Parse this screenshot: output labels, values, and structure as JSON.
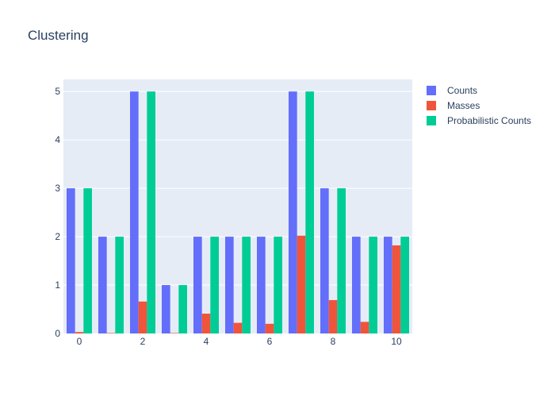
{
  "chart_data": {
    "type": "bar",
    "title": "Clustering",
    "xlabel": "",
    "ylabel": "",
    "x": [
      0,
      1,
      2,
      3,
      4,
      5,
      6,
      7,
      8,
      9,
      10
    ],
    "xticks": [
      0,
      2,
      4,
      6,
      8,
      10
    ],
    "yticks": [
      0,
      1,
      2,
      3,
      4,
      5
    ],
    "xlim": [
      -0.5,
      10.5
    ],
    "ylim": [
      0,
      5.25
    ],
    "grid": true,
    "legend_position": "top-right",
    "series": [
      {
        "name": "Counts",
        "color": "#636efa",
        "values": [
          3,
          2,
          5,
          1,
          2,
          2,
          2,
          5,
          3,
          2,
          2
        ]
      },
      {
        "name": "Masses",
        "color": "#ef553b",
        "values": [
          0.03,
          0.01,
          0.66,
          0.01,
          0.41,
          0.22,
          0.2,
          2.02,
          0.69,
          0.24,
          1.82
        ]
      },
      {
        "name": "Probabilistic Counts",
        "color": "#00cc96",
        "values": [
          3,
          2,
          5,
          1,
          2,
          2,
          2,
          5,
          3,
          2,
          2
        ]
      }
    ]
  }
}
